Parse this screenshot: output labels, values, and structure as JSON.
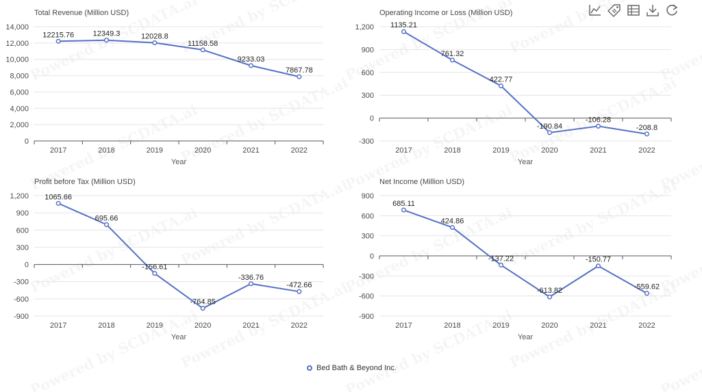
{
  "toolbar": {
    "icons": [
      "line-chart-icon",
      "tag-icon",
      "data-view-icon",
      "download-icon",
      "refresh-icon"
    ]
  },
  "watermark_text": "Powered by SCDATA.ai",
  "legend": {
    "label": "Bed Bath & Beyond Inc.",
    "color": "#5470c6"
  },
  "chart_data": [
    {
      "type": "line",
      "title": "Total Revenue (Million USD)",
      "xlabel": "Year",
      "ylabel": "",
      "categories": [
        "2017",
        "2018",
        "2019",
        "2020",
        "2021",
        "2022"
      ],
      "series": [
        {
          "name": "Bed Bath & Beyond Inc.",
          "values": [
            12215.76,
            12349.3,
            12028.8,
            11158.58,
            9233.03,
            7867.78
          ]
        }
      ],
      "ylim": [
        0,
        14000
      ],
      "yticks": [
        0,
        2000,
        4000,
        6000,
        8000,
        10000,
        12000,
        14000
      ],
      "yticklabels": [
        "0",
        "2,000",
        "4,000",
        "6,000",
        "8,000",
        "10,000",
        "12,000",
        "14,000"
      ],
      "data_labels": [
        "12215.76",
        "12349.3",
        "12028.8",
        "11158.58",
        "9233.03",
        "7867.78"
      ],
      "grid": true,
      "color": "#5470c6"
    },
    {
      "type": "line",
      "title": "Operating Income or Loss (Million USD)",
      "xlabel": "Year",
      "ylabel": "",
      "categories": [
        "2017",
        "2018",
        "2019",
        "2020",
        "2021",
        "2022"
      ],
      "series": [
        {
          "name": "Bed Bath & Beyond Inc.",
          "values": [
            1135.21,
            761.32,
            422.77,
            -190.84,
            -106.28,
            -208.8
          ]
        }
      ],
      "ylim": [
        -300,
        1200
      ],
      "yticks": [
        -300,
        0,
        300,
        600,
        900,
        1200
      ],
      "yticklabels": [
        "-300",
        "0",
        "300",
        "600",
        "900",
        "1,200"
      ],
      "data_labels": [
        "1135.21",
        "761.32",
        "422.77",
        "-190.84",
        "-106.28",
        "-208.8"
      ],
      "grid": true,
      "color": "#5470c6"
    },
    {
      "type": "line",
      "title": "Profit before Tax (Million USD)",
      "xlabel": "Year",
      "ylabel": "",
      "categories": [
        "2017",
        "2018",
        "2019",
        "2020",
        "2021",
        "2022"
      ],
      "series": [
        {
          "name": "Bed Bath & Beyond Inc.",
          "values": [
            1065.66,
            695.66,
            -156.61,
            -764.85,
            -336.76,
            -472.66
          ]
        }
      ],
      "ylim": [
        -900,
        1200
      ],
      "yticks": [
        -900,
        -600,
        -300,
        0,
        300,
        600,
        900,
        1200
      ],
      "yticklabels": [
        "-900",
        "-600",
        "-300",
        "0",
        "300",
        "600",
        "900",
        "1,200"
      ],
      "data_labels": [
        "1065.66",
        "695.66",
        "-156.61",
        "-764.85",
        "-336.76",
        "-472.66"
      ],
      "grid": true,
      "color": "#5470c6"
    },
    {
      "type": "line",
      "title": "Net Income (Million USD)",
      "xlabel": "Year",
      "ylabel": "",
      "categories": [
        "2017",
        "2018",
        "2019",
        "2020",
        "2021",
        "2022"
      ],
      "series": [
        {
          "name": "Bed Bath & Beyond Inc.",
          "values": [
            685.11,
            424.86,
            -137.22,
            -613.82,
            -150.77,
            -559.62
          ]
        }
      ],
      "ylim": [
        -900,
        900
      ],
      "yticks": [
        -900,
        -600,
        -300,
        0,
        300,
        600,
        900
      ],
      "yticklabels": [
        "-900",
        "-600",
        "-300",
        "0",
        "300",
        "600",
        "900"
      ],
      "data_labels": [
        "685.11",
        "424.86",
        "-137.22",
        "-613.82",
        "-150.77",
        "-559.62"
      ],
      "grid": true,
      "color": "#5470c6"
    }
  ]
}
